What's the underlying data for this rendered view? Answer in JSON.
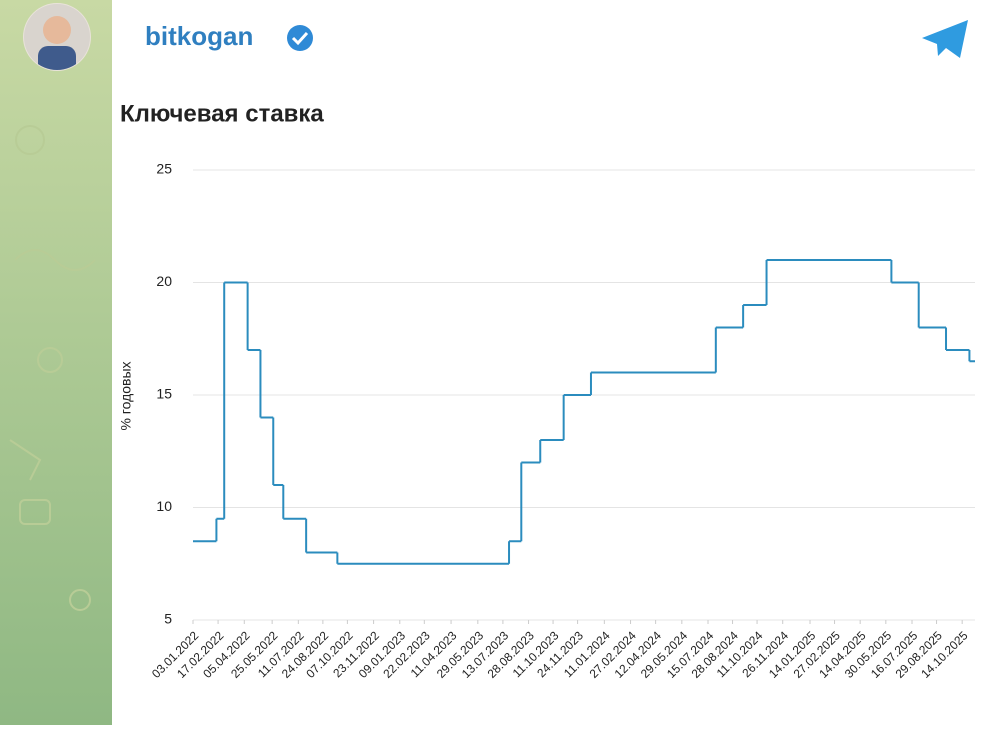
{
  "header": {
    "channel": "bitkogan"
  },
  "chart_data": {
    "type": "step",
    "title": "Ключевая ставка",
    "y_label": "% годовых",
    "x": [
      "03.01.2022",
      "14.02.2022",
      "28.02.2022",
      "11.04.2022",
      "04.05.2022",
      "27.05.2022",
      "14.06.2022",
      "25.07.2022",
      "19.09.2022",
      "24.07.2023",
      "15.08.2023",
      "18.09.2023",
      "30.10.2023",
      "18.12.2023",
      "29.07.2024",
      "16.09.2024",
      "28.10.2024",
      "09.06.2025",
      "28.07.2025",
      "15.09.2025",
      "27.10.2025"
    ],
    "series": [
      {
        "name": "Ключевая ставка",
        "color": "#2b8cbe",
        "values": [
          8.5,
          9.5,
          20,
          17,
          14,
          11,
          9.5,
          8,
          7.5,
          8.5,
          12,
          13,
          15,
          16,
          18,
          19,
          21,
          20,
          18,
          17,
          16.5
        ]
      }
    ],
    "xlim": [
      "03.01.2022",
      "06.11.2025"
    ],
    "xticks": [
      "03.01.2022",
      "17.02.2022",
      "05.04.2022",
      "25.05.2022",
      "11.07.2022",
      "24.08.2022",
      "07.10.2022",
      "23.11.2022",
      "09.01.2023",
      "22.02.2023",
      "11.04.2023",
      "29.05.2023",
      "13.07.2023",
      "28.08.2023",
      "11.10.2023",
      "24.11.2023",
      "11.01.2024",
      "27.02.2024",
      "12.04.2024",
      "29.05.2024",
      "15.07.2024",
      "28.08.2024",
      "11.10.2024",
      "26.11.2024",
      "14.01.2025",
      "27.02.2025",
      "14.04.2025",
      "30.05.2025",
      "16.07.2025",
      "29.08.2025",
      "14.10.2025"
    ],
    "ylim": [
      5,
      25
    ],
    "yticks": [
      5,
      10,
      15,
      20,
      25
    ],
    "grid": true
  }
}
